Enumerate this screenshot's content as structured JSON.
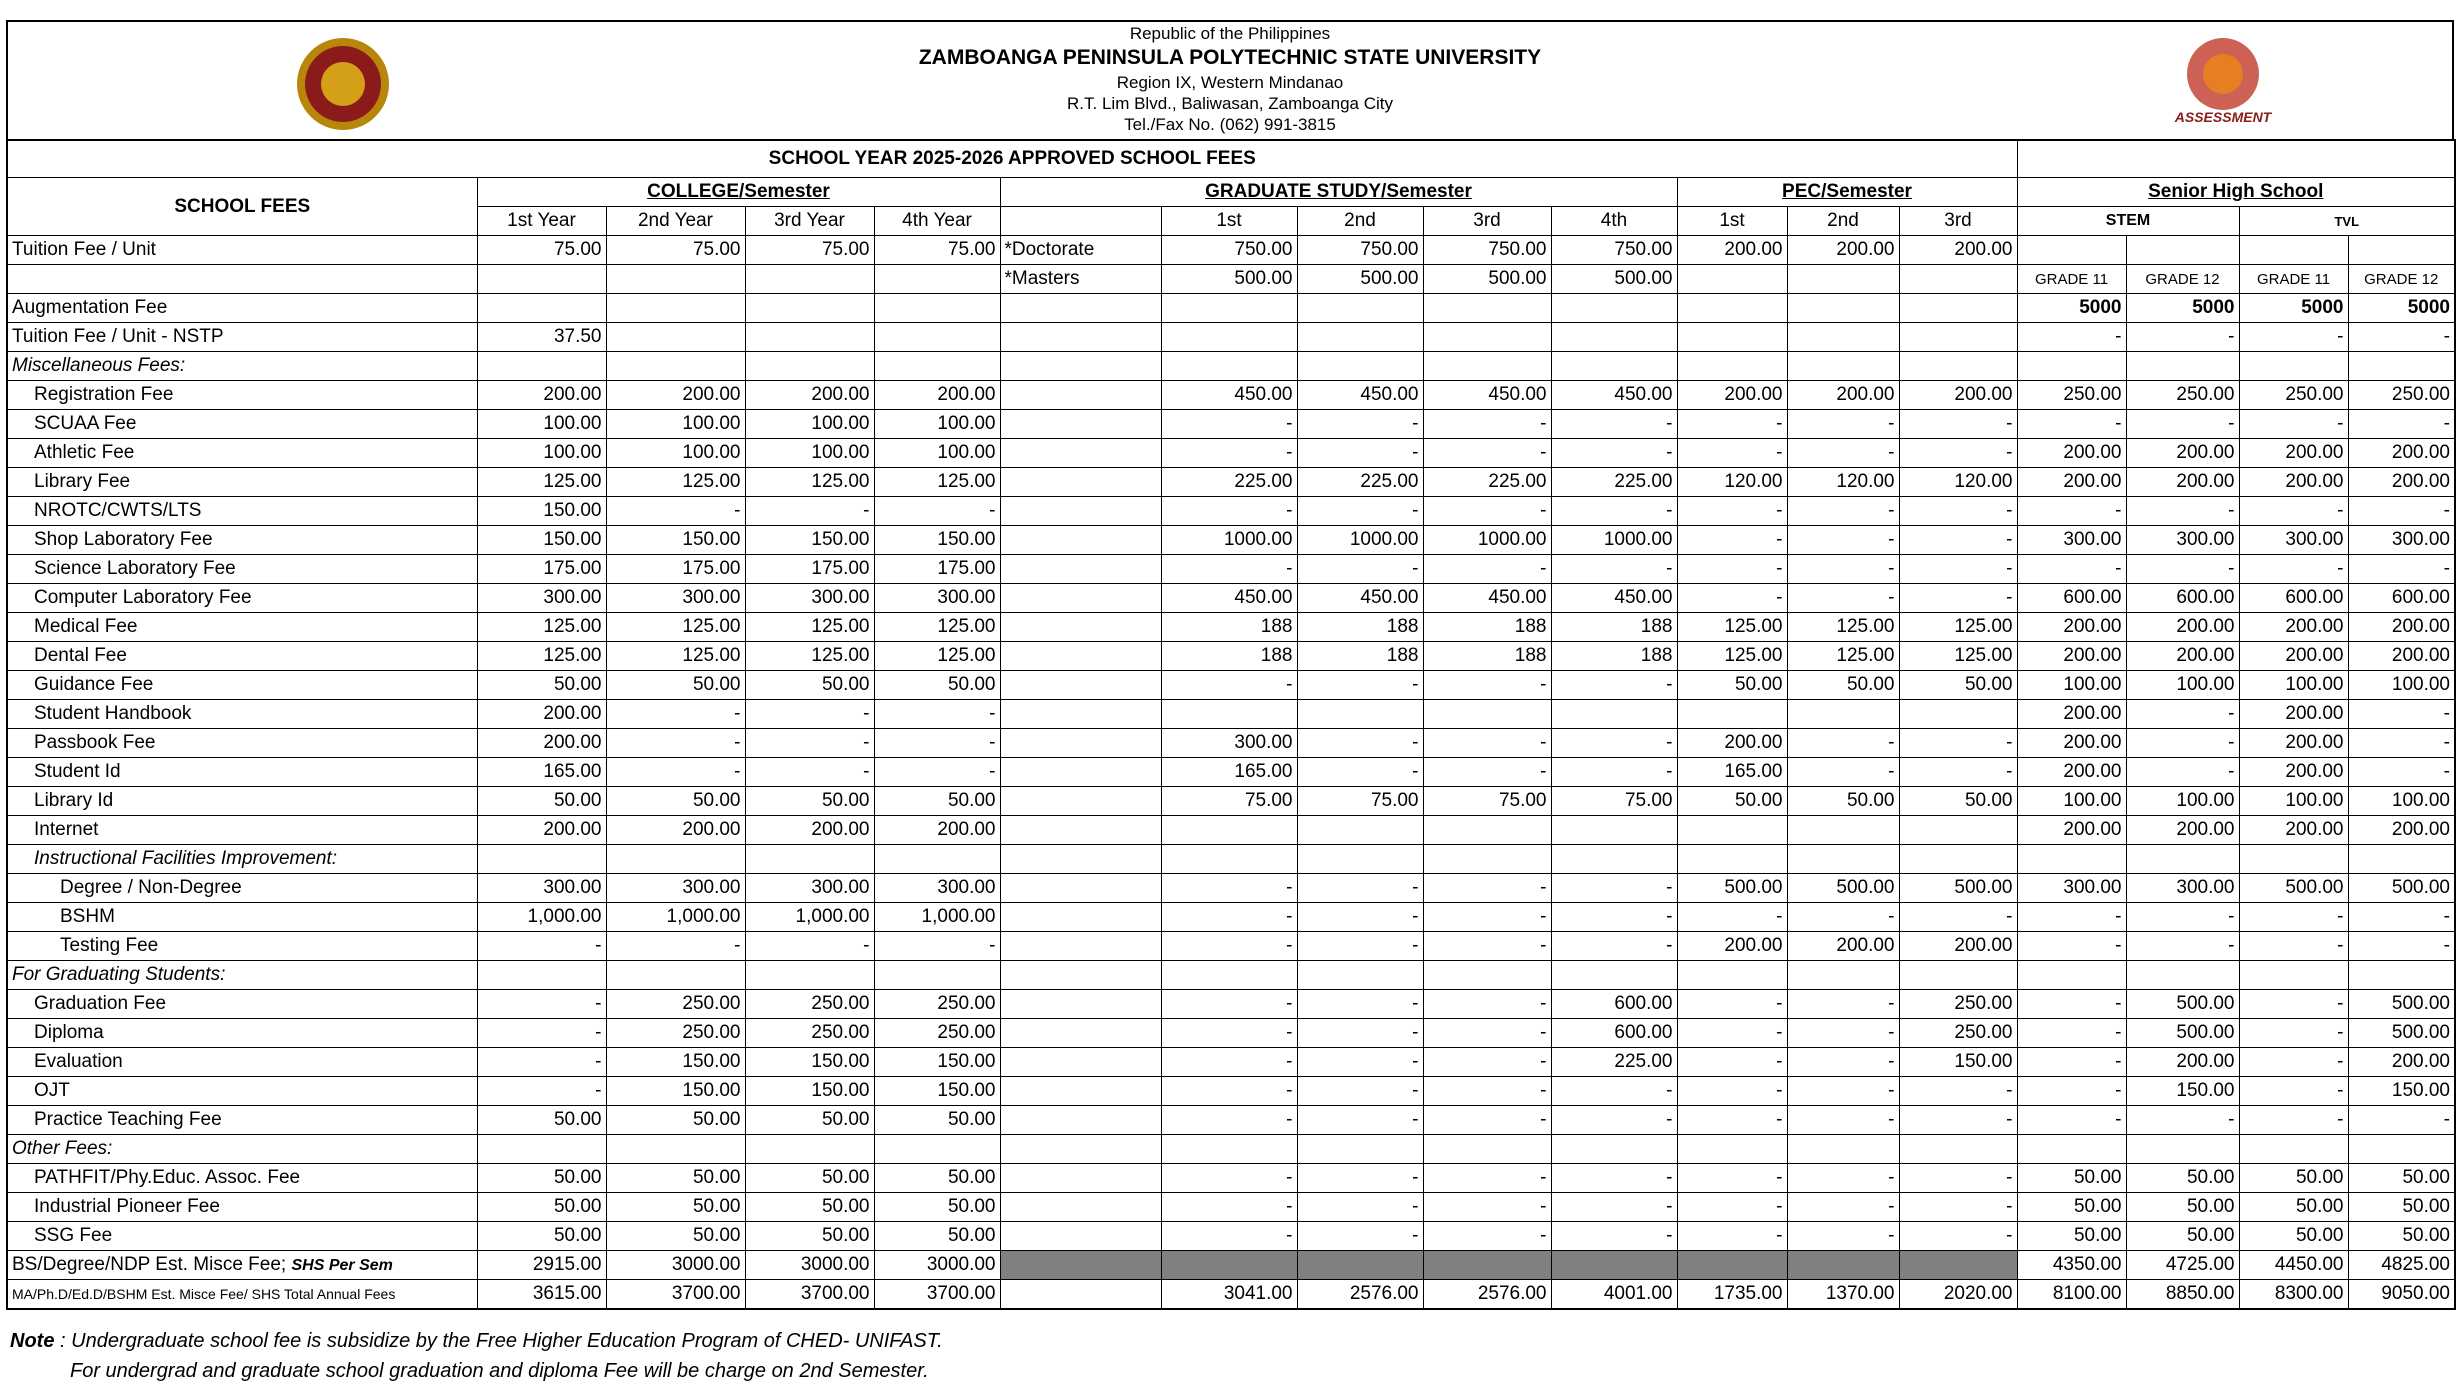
{
  "header": {
    "republic": "Republic of the Philippines",
    "university": "ZAMBOANGA PENINSULA POLYTECHNIC STATE UNIVERSITY",
    "region": "Region IX, Western Mindanao",
    "address": "R.T. Lim Blvd., Baliwasan, Zamboanga City",
    "tel": "Tel./Fax No. (062) 991-3815",
    "logo_right_text": "ASSESSMENT"
  },
  "table": {
    "title": "SCHOOL YEAR 2025-2026 APPROVED SCHOOL FEES",
    "columns": {
      "school_fees": "SCHOOL FEES",
      "college": "COLLEGE/Semester",
      "graduate": "GRADUATE STUDY/Semester",
      "pec": "PEC/Semester",
      "shs": "Senior High School",
      "college_years": [
        "1st Year",
        "2nd Year",
        "3rd Year",
        "4th Year"
      ],
      "grad_terms": [
        "1st",
        "2nd",
        "3rd",
        "4th"
      ],
      "pec_terms": [
        "1st",
        "2nd",
        "3rd"
      ],
      "shs_tracks": [
        "STEM",
        "TVL"
      ]
    },
    "rows": [
      [
        "Tuition Fee / Unit",
        "75.00",
        "75.00",
        "75.00",
        "75.00",
        "*Doctorate",
        "750.00",
        "750.00",
        "750.00",
        "750.00",
        "200.00",
        "200.00",
        "200.00",
        null,
        null,
        null,
        null
      ],
      [
        null,
        null,
        null,
        null,
        null,
        "*Masters",
        "500.00",
        "500.00",
        "500.00",
        "500.00",
        null,
        null,
        null,
        "GRADE 11",
        "GRADE 12",
        "GRADE 11",
        "GRADE 12"
      ],
      [
        "Augmentation Fee",
        null,
        null,
        null,
        null,
        null,
        null,
        null,
        null,
        null,
        null,
        null,
        null,
        "5000",
        "5000",
        "5000",
        "5000"
      ],
      [
        "Tuition Fee / Unit - NSTP",
        "37.50",
        null,
        null,
        null,
        null,
        null,
        null,
        null,
        null,
        null,
        null,
        null,
        "-",
        "-",
        "-",
        "-"
      ],
      [
        "Miscellaneous Fees:",
        null,
        null,
        null,
        null,
        null,
        null,
        null,
        null,
        null,
        null,
        null,
        null,
        null,
        null,
        null,
        null
      ],
      [
        "Registration Fee",
        "200.00",
        "200.00",
        "200.00",
        "200.00",
        null,
        "450.00",
        "450.00",
        "450.00",
        "450.00",
        "200.00",
        "200.00",
        "200.00",
        "250.00",
        "250.00",
        "250.00",
        "250.00"
      ],
      [
        "SCUAA Fee",
        "100.00",
        "100.00",
        "100.00",
        "100.00",
        null,
        "-",
        "-",
        "-",
        "-",
        "-",
        "-",
        "-",
        "-",
        "-",
        "-",
        "-"
      ],
      [
        "Athletic Fee",
        "100.00",
        "100.00",
        "100.00",
        "100.00",
        null,
        "-",
        "-",
        "-",
        "-",
        "-",
        "-",
        "-",
        "200.00",
        "200.00",
        "200.00",
        "200.00"
      ],
      [
        "Library Fee",
        "125.00",
        "125.00",
        "125.00",
        "125.00",
        null,
        "225.00",
        "225.00",
        "225.00",
        "225.00",
        "120.00",
        "120.00",
        "120.00",
        "200.00",
        "200.00",
        "200.00",
        "200.00"
      ],
      [
        "NROTC/CWTS/LTS",
        "150.00",
        "-",
        "-",
        "-",
        null,
        "-",
        "-",
        "-",
        "-",
        "-",
        "-",
        "-",
        "-",
        "-",
        "-",
        "-"
      ],
      [
        "Shop Laboratory Fee",
        "150.00",
        "150.00",
        "150.00",
        "150.00",
        null,
        "1000.00",
        "1000.00",
        "1000.00",
        "1000.00",
        "-",
        "-",
        "-",
        "300.00",
        "300.00",
        "300.00",
        "300.00"
      ],
      [
        "Science Laboratory Fee",
        "175.00",
        "175.00",
        "175.00",
        "175.00",
        null,
        "-",
        "-",
        "-",
        "-",
        "-",
        "-",
        "-",
        "-",
        "-",
        "-",
        "-"
      ],
      [
        "Computer Laboratory Fee",
        "300.00",
        "300.00",
        "300.00",
        "300.00",
        null,
        "450.00",
        "450.00",
        "450.00",
        "450.00",
        "-",
        "-",
        "-",
        "600.00",
        "600.00",
        "600.00",
        "600.00"
      ],
      [
        "Medical Fee",
        "125.00",
        "125.00",
        "125.00",
        "125.00",
        null,
        "188",
        "188",
        "188",
        "188",
        "125.00",
        "125.00",
        "125.00",
        "200.00",
        "200.00",
        "200.00",
        "200.00"
      ],
      [
        "Dental Fee",
        "125.00",
        "125.00",
        "125.00",
        "125.00",
        null,
        "188",
        "188",
        "188",
        "188",
        "125.00",
        "125.00",
        "125.00",
        "200.00",
        "200.00",
        "200.00",
        "200.00"
      ],
      [
        "Guidance Fee",
        "50.00",
        "50.00",
        "50.00",
        "50.00",
        null,
        "-",
        "-",
        "-",
        "-",
        "50.00",
        "50.00",
        "50.00",
        "100.00",
        "100.00",
        "100.00",
        "100.00"
      ],
      [
        "Student Handbook",
        "200.00",
        "-",
        "-",
        "-",
        null,
        null,
        null,
        null,
        null,
        null,
        null,
        null,
        "200.00",
        "-",
        "200.00",
        "-"
      ],
      [
        "Passbook Fee",
        "200.00",
        "-",
        "-",
        "-",
        null,
        "300.00",
        "-",
        "-",
        "-",
        "200.00",
        "-",
        "-",
        "200.00",
        "-",
        "200.00",
        "-"
      ],
      [
        "Student Id",
        "165.00",
        "-",
        "-",
        "-",
        null,
        "165.00",
        "-",
        "-",
        "-",
        "165.00",
        "-",
        "-",
        "200.00",
        "-",
        "200.00",
        "-"
      ],
      [
        "Library Id",
        "50.00",
        "50.00",
        "50.00",
        "50.00",
        null,
        "75.00",
        "75.00",
        "75.00",
        "75.00",
        "50.00",
        "50.00",
        "50.00",
        "100.00",
        "100.00",
        "100.00",
        "100.00"
      ],
      [
        "Internet",
        "200.00",
        "200.00",
        "200.00",
        "200.00",
        null,
        null,
        null,
        null,
        null,
        null,
        null,
        null,
        "200.00",
        "200.00",
        "200.00",
        "200.00"
      ],
      [
        "Instructional Facilities Improvement:",
        null,
        null,
        null,
        null,
        null,
        null,
        null,
        null,
        null,
        null,
        null,
        null,
        null,
        null,
        null,
        null
      ],
      [
        "Degree / Non-Degree",
        "300.00",
        "300.00",
        "300.00",
        "300.00",
        null,
        "-",
        "-",
        "-",
        "-",
        "500.00",
        "500.00",
        "500.00",
        "300.00",
        "300.00",
        "500.00",
        "500.00"
      ],
      [
        "BSHM",
        "1,000.00",
        "1,000.00",
        "1,000.00",
        "1,000.00",
        null,
        "-",
        "-",
        "-",
        "-",
        "-",
        "-",
        "-",
        "-",
        "-",
        "-",
        "-"
      ],
      [
        "Testing Fee",
        "-",
        "-",
        "-",
        "-",
        null,
        "-",
        "-",
        "-",
        "-",
        "200.00",
        "200.00",
        "200.00",
        "-",
        "-",
        "-",
        "-"
      ],
      [
        "For Graduating Students:",
        null,
        null,
        null,
        null,
        null,
        null,
        null,
        null,
        null,
        null,
        null,
        null,
        null,
        null,
        null,
        null
      ],
      [
        "Graduation Fee",
        "-",
        "250.00",
        "250.00",
        "250.00",
        null,
        "-",
        "-",
        "-",
        "600.00",
        "-",
        "-",
        "250.00",
        "-",
        "500.00",
        "-",
        "500.00"
      ],
      [
        "Diploma",
        "-",
        "250.00",
        "250.00",
        "250.00",
        null,
        "-",
        "-",
        "-",
        "600.00",
        "-",
        "-",
        "250.00",
        "-",
        "500.00",
        "-",
        "500.00"
      ],
      [
        "Evaluation",
        "-",
        "150.00",
        "150.00",
        "150.00",
        null,
        "-",
        "-",
        "-",
        "225.00",
        "-",
        "-",
        "150.00",
        "-",
        "200.00",
        "-",
        "200.00"
      ],
      [
        "OJT",
        "-",
        "150.00",
        "150.00",
        "150.00",
        null,
        "-",
        "-",
        "-",
        "-",
        "-",
        "-",
        "-",
        "-",
        "150.00",
        "-",
        "150.00"
      ],
      [
        "Practice Teaching Fee",
        "50.00",
        "50.00",
        "50.00",
        "50.00",
        null,
        "-",
        "-",
        "-",
        "-",
        "-",
        "-",
        "-",
        "-",
        "-",
        "-",
        "-"
      ],
      [
        "Other Fees:",
        null,
        null,
        null,
        null,
        null,
        null,
        null,
        null,
        null,
        null,
        null,
        null,
        null,
        null,
        null,
        null
      ],
      [
        "PATHFIT/Phy.Educ. Assoc. Fee",
        "50.00",
        "50.00",
        "50.00",
        "50.00",
        null,
        "-",
        "-",
        "-",
        "-",
        "-",
        "-",
        "-",
        "50.00",
        "50.00",
        "50.00",
        "50.00"
      ],
      [
        "Industrial Pioneer Fee",
        "50.00",
        "50.00",
        "50.00",
        "50.00",
        null,
        "-",
        "-",
        "-",
        "-",
        "-",
        "-",
        "-",
        "50.00",
        "50.00",
        "50.00",
        "50.00"
      ],
      [
        "SSG Fee",
        "50.00",
        "50.00",
        "50.00",
        "50.00",
        null,
        "-",
        "-",
        "-",
        "-",
        "-",
        "-",
        "-",
        "50.00",
        "50.00",
        "50.00",
        "50.00"
      ]
    ],
    "totals": [
      {
        "label": "BS/Degree/NDP Est. Misce Fee;",
        "label_note": "SHS Per Sem",
        "cells": [
          "2915.00",
          "3000.00",
          "3000.00",
          "3000.00",
          null,
          null,
          null,
          null,
          null,
          null,
          null,
          null,
          "4350.00",
          "4725.00",
          "4450.00",
          "4825.00"
        ]
      },
      {
        "label": "MA/Ph.D/Ed.D/BSHM Est. Misce Fee/ SHS Total Annual Fees",
        "cells": [
          "3615.00",
          "3700.00",
          "3700.00",
          "3700.00",
          null,
          "3041.00",
          "2576.00",
          "2576.00",
          "4001.00",
          "1735.00",
          "1370.00",
          "2020.00",
          "8100.00",
          "8850.00",
          "8300.00",
          "9050.00"
        ]
      }
    ]
  },
  "note": {
    "label": "Note",
    "line1": ": Undergraduate school fee is subsidize by the Free Higher Education Program of CHED- UNIFAST.",
    "line2": "For undergrad and graduate school graduation and diploma Fee will be charge on 2nd Semester."
  }
}
